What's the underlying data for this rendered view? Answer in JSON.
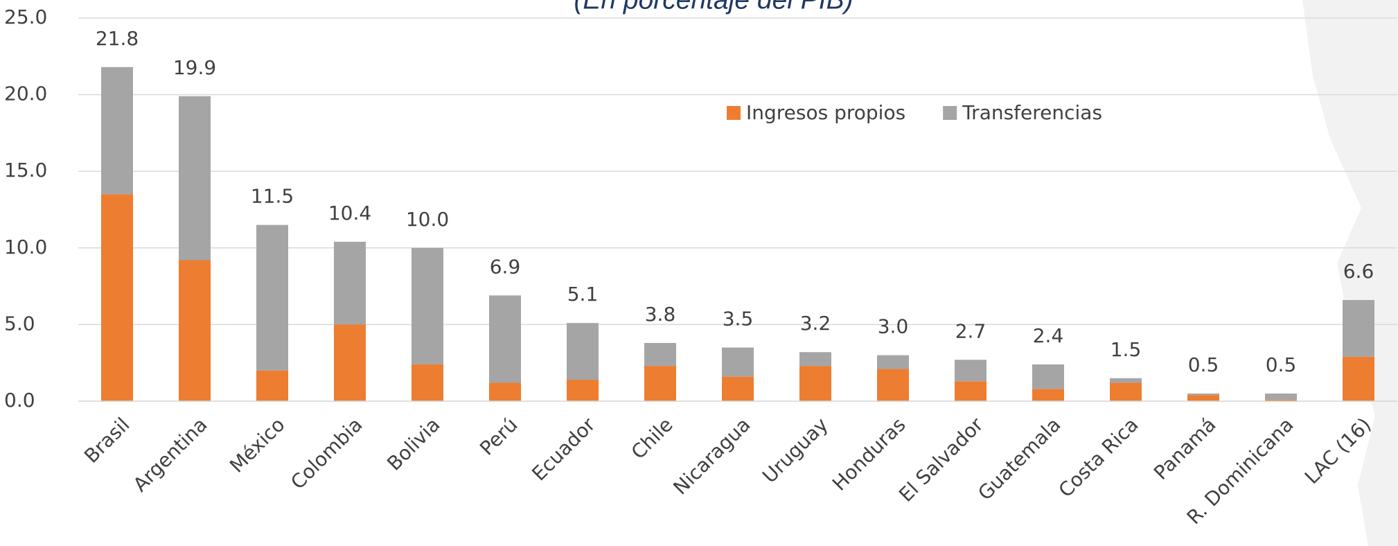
{
  "chart_data": {
    "type": "stacked_bar",
    "subtitle": "(En porcentaje del PIB)",
    "categories": [
      "Brasil",
      "Argentina",
      "México",
      "Colombia",
      "Bolivia",
      "Perú",
      "Ecuador",
      "Chile",
      "Nicaragua",
      "Uruguay",
      "Honduras",
      "El Salvador",
      "Guatemala",
      "Costa Rica",
      "Panamá",
      "R. Dominicana",
      "LAC (16)"
    ],
    "series": [
      {
        "name": "Ingresos propios",
        "color": "#ed7d31",
        "values": [
          13.5,
          9.2,
          2.0,
          5.0,
          2.4,
          1.2,
          1.4,
          2.3,
          1.6,
          2.3,
          2.1,
          1.3,
          0.8,
          1.2,
          0.4,
          0.1,
          2.9
        ]
      },
      {
        "name": "Transferencias",
        "color": "#a5a5a5",
        "values": [
          8.3,
          10.7,
          9.5,
          5.4,
          7.6,
          5.7,
          3.7,
          1.5,
          1.9,
          0.9,
          0.9,
          1.4,
          1.6,
          0.3,
          0.1,
          0.4,
          3.7
        ]
      }
    ],
    "total_labels": [
      "21.8",
      "19.9",
      "11.5",
      "10.4",
      "10.0",
      "6.9",
      "5.1",
      "3.8",
      "3.5",
      "3.2",
      "3.0",
      "2.7",
      "2.4",
      "1.5",
      "0.5",
      "0.5",
      "6.6"
    ],
    "ylim": [
      0,
      25
    ],
    "yticks": [
      {
        "value": 0,
        "label": "0.0"
      },
      {
        "value": 5,
        "label": "5.0"
      },
      {
        "value": 10,
        "label": "10.0"
      },
      {
        "value": 15,
        "label": "15.0"
      },
      {
        "value": 20,
        "label": "20.0"
      },
      {
        "value": 25,
        "label": "25.0"
      }
    ],
    "grid": true,
    "legend": "top"
  }
}
